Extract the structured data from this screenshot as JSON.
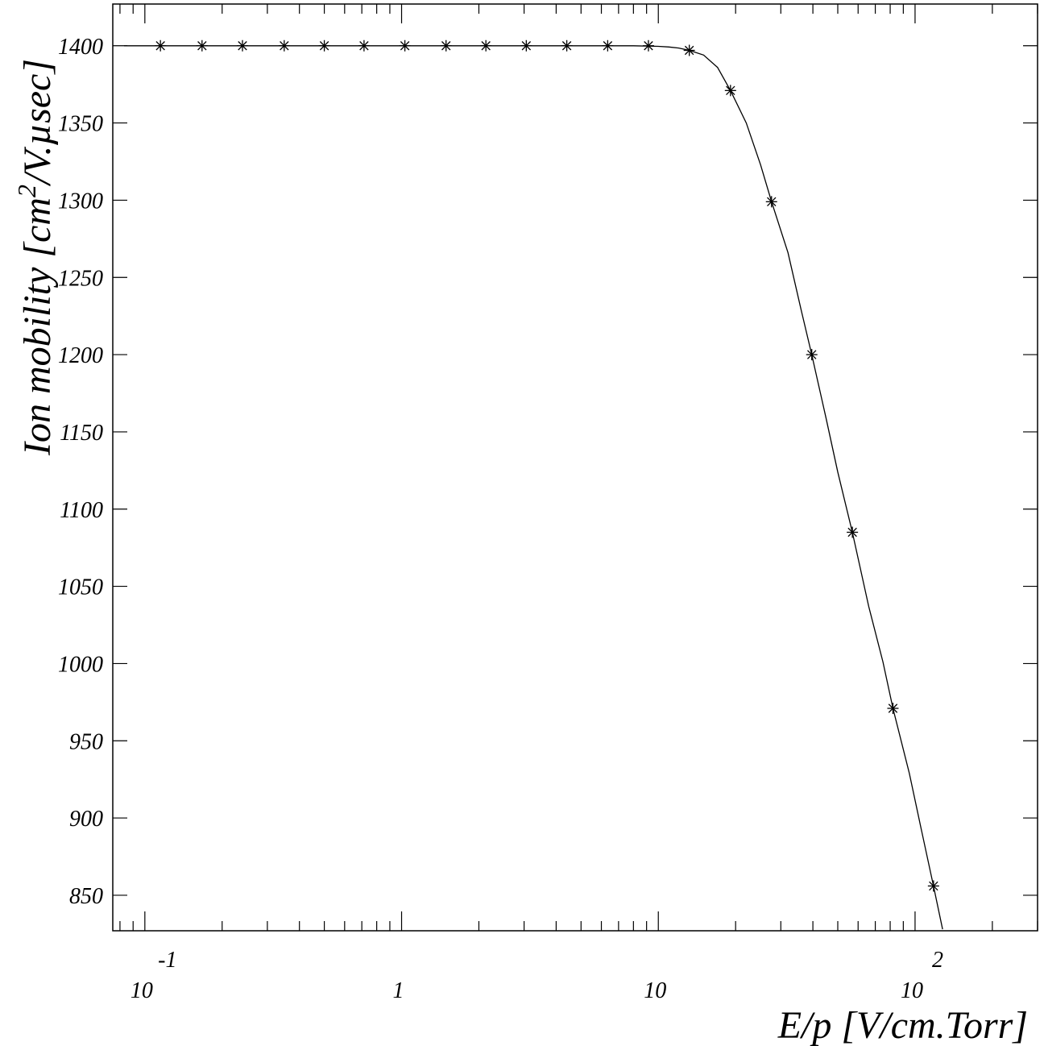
{
  "chart_data": {
    "type": "line",
    "title": "",
    "xlabel": "E/p [V/cm.Torr]",
    "ylabel": {
      "prefix": "Ion mobility [",
      "unit_base": "cm",
      "unit_exp": "2",
      "unit_rest": "/V.µsec",
      "suffix": "]"
    },
    "x_scale": "log",
    "xlim": [
      0.075,
      300
    ],
    "ylim": [
      827,
      1427
    ],
    "x_tick_labels": [
      {
        "value": 0.1,
        "base": "10",
        "exp": "-1"
      },
      {
        "value": 1,
        "base": "1",
        "exp": ""
      },
      {
        "value": 10,
        "base": "10",
        "exp": ""
      },
      {
        "value": 100,
        "base": "10",
        "exp": "2"
      }
    ],
    "y_ticks": [
      850,
      900,
      950,
      1000,
      1050,
      1100,
      1150,
      1200,
      1250,
      1300,
      1350,
      1400
    ],
    "y_tick_labels": [
      "850",
      "900",
      "950",
      "1000",
      "1050",
      "1100",
      "1150",
      "1200",
      "1250",
      "1300",
      "1350",
      "1400"
    ],
    "series": [
      {
        "style": "markers",
        "marker": "asterisk",
        "x": [
          0.115,
          0.167,
          0.24,
          0.349,
          0.5,
          0.714,
          1.03,
          1.49,
          2.13,
          3.06,
          4.4,
          6.35,
          9.15,
          13.2,
          19.1,
          27.6,
          39.6,
          57,
          82,
          118
        ],
        "y": [
          1400,
          1400,
          1400,
          1400,
          1400,
          1400,
          1400,
          1400,
          1400,
          1400,
          1400,
          1400,
          1400,
          1397,
          1371,
          1299,
          1200,
          1085,
          971,
          856
        ]
      },
      {
        "style": "line",
        "x": [
          0.083,
          1,
          8,
          10,
          11,
          12,
          13.2,
          15,
          17,
          19.1,
          22,
          25,
          27.6,
          32,
          36,
          39.6,
          45,
          50,
          57,
          66,
          75,
          82,
          95,
          105,
          118,
          128
        ],
        "y": [
          1400,
          1400,
          1400,
          1399.6,
          1399.2,
          1398.5,
          1397,
          1394,
          1386,
          1371,
          1350,
          1323,
          1299,
          1266,
          1229,
          1200,
          1159,
          1124,
          1085,
          1037,
          1001,
          971,
          929,
          895,
          856,
          828
        ]
      }
    ]
  }
}
